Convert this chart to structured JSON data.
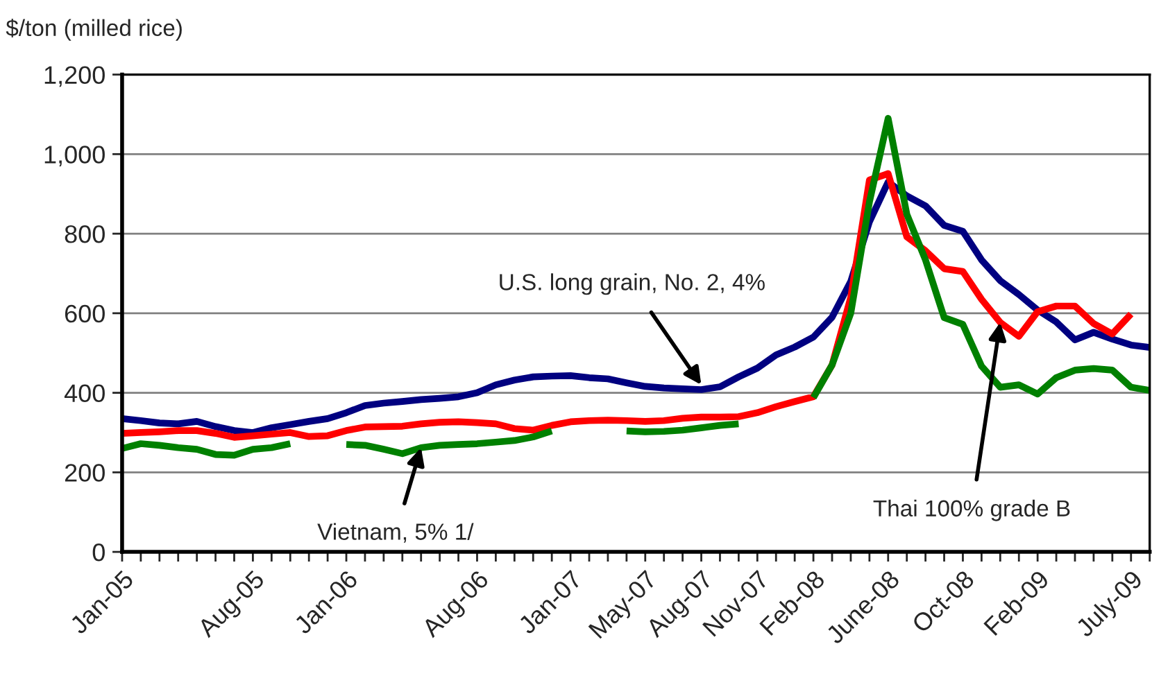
{
  "chart_data": {
    "type": "line",
    "ylabel": "$/ton (milled rice)",
    "x": [
      "2005-01",
      "2005-02",
      "2005-03",
      "2005-04",
      "2005-05",
      "2005-06",
      "2005-07",
      "2005-08",
      "2005-09",
      "2005-10",
      "2005-11",
      "2005-12",
      "2006-01",
      "2006-02",
      "2006-03",
      "2006-04",
      "2006-05",
      "2006-06",
      "2006-07",
      "2006-08",
      "2006-09",
      "2006-10",
      "2006-11",
      "2006-12",
      "2007-01",
      "2007-02",
      "2007-03",
      "2007-04",
      "2007-05",
      "2007-06",
      "2007-07",
      "2007-08",
      "2007-09",
      "2007-10",
      "2007-11",
      "2007-12",
      "2008-01",
      "2008-02",
      "2008-03",
      "2008-04",
      "2008-05",
      "2008-06",
      "2008-07",
      "2008-08",
      "2008-09",
      "2008-10",
      "2008-11",
      "2008-12",
      "2009-01",
      "2009-02",
      "2009-03",
      "2009-04",
      "2009-05",
      "2009-06",
      "2009-07",
      "2009-08"
    ],
    "series": [
      {
        "color": "#000080",
        "values": [
          335,
          330,
          324,
          322,
          328,
          315,
          305,
          300,
          312,
          320,
          328,
          335,
          350,
          368,
          374,
          378,
          383,
          386,
          390,
          400,
          420,
          432,
          440,
          442,
          443,
          438,
          435,
          425,
          416,
          412,
          410,
          408,
          415,
          440,
          462,
          495,
          515,
          540,
          590,
          680,
          830,
          930,
          895,
          870,
          821,
          806,
          734,
          682,
          647,
          608,
          578,
          533,
          552,
          535,
          520,
          514
        ]
      },
      {
        "color": "#ff0000",
        "values": [
          298,
          300,
          302,
          305,
          305,
          298,
          288,
          292,
          296,
          300,
          290,
          292,
          305,
          314,
          315,
          316,
          322,
          326,
          327,
          325,
          322,
          310,
          306,
          318,
          327,
          330,
          331,
          330,
          328,
          330,
          336,
          339,
          339,
          340,
          350,
          365,
          378,
          390,
          470,
          640,
          935,
          951,
          792,
          757,
          712,
          705,
          635,
          577,
          542,
          604,
          618,
          618,
          574,
          548,
          598,
          null
        ]
      },
      {
        "color": "#008000",
        "values": [
          260,
          272,
          268,
          262,
          258,
          245,
          243,
          258,
          262,
          272,
          null,
          null,
          270,
          268,
          258,
          247,
          262,
          268,
          270,
          272,
          276,
          280,
          289,
          304,
          null,
          null,
          null,
          304,
          302,
          303,
          306,
          312,
          318,
          322,
          null,
          null,
          null,
          388,
          470,
          600,
          880,
          1090,
          849,
          734,
          589,
          572,
          467,
          414,
          420,
          397,
          438,
          457,
          461,
          457,
          414,
          406
        ]
      }
    ],
    "annotations": [
      {
        "text": "U.S. long grain, No. 2, 4%",
        "x": "2007-08",
        "y": 420
      },
      {
        "text": "Vietnam, 5% 1/",
        "x": "2006-05",
        "y": 262
      },
      {
        "text": "Thai 100% grade B",
        "x": "2008-12",
        "y": 577
      }
    ],
    "xlim": [
      "2005-01",
      "2009-08"
    ],
    "xticks": [
      {
        "value": "2005-01",
        "label": "Jan-05"
      },
      {
        "value": "2005-02",
        "label": null
      },
      {
        "value": "2005-03",
        "label": null
      },
      {
        "value": "2005-04",
        "label": null
      },
      {
        "value": "2005-05",
        "label": null
      },
      {
        "value": "2005-06",
        "label": null
      },
      {
        "value": "2005-07",
        "label": null
      },
      {
        "value": "2005-08",
        "label": "Aug-05"
      },
      {
        "value": "2005-09",
        "label": null
      },
      {
        "value": "2005-10",
        "label": null
      },
      {
        "value": "2005-11",
        "label": null
      },
      {
        "value": "2005-12",
        "label": null
      },
      {
        "value": "2006-01",
        "label": "Jan-06"
      },
      {
        "value": "2006-02",
        "label": null
      },
      {
        "value": "2006-03",
        "label": null
      },
      {
        "value": "2006-04",
        "label": null
      },
      {
        "value": "2006-05",
        "label": null
      },
      {
        "value": "2006-06",
        "label": null
      },
      {
        "value": "2006-07",
        "label": null
      },
      {
        "value": "2006-08",
        "label": "Aug-06"
      },
      {
        "value": "2006-09",
        "label": null
      },
      {
        "value": "2006-10",
        "label": null
      },
      {
        "value": "2006-11",
        "label": null
      },
      {
        "value": "2006-12",
        "label": null
      },
      {
        "value": "2007-01",
        "label": "Jan-07"
      },
      {
        "value": "2007-02",
        "label": null
      },
      {
        "value": "2007-03",
        "label": null
      },
      {
        "value": "2007-04",
        "label": null
      },
      {
        "value": "2007-05",
        "label": "May-07"
      },
      {
        "value": "2007-06",
        "label": null
      },
      {
        "value": "2007-07",
        "label": null
      },
      {
        "value": "2007-08",
        "label": "Aug-07"
      },
      {
        "value": "2007-09",
        "label": null
      },
      {
        "value": "2007-10",
        "label": null
      },
      {
        "value": "2007-11",
        "label": "Nov-07"
      },
      {
        "value": "2007-12",
        "label": null
      },
      {
        "value": "2008-01",
        "label": null
      },
      {
        "value": "2008-02",
        "label": "Feb-08"
      },
      {
        "value": "2008-03",
        "label": null
      },
      {
        "value": "2008-04",
        "label": null
      },
      {
        "value": "2008-05",
        "label": null
      },
      {
        "value": "2008-06",
        "label": "June-08"
      },
      {
        "value": "2008-07",
        "label": null
      },
      {
        "value": "2008-08",
        "label": null
      },
      {
        "value": "2008-09",
        "label": null
      },
      {
        "value": "2008-10",
        "label": "Oct-08"
      },
      {
        "value": "2008-11",
        "label": null
      },
      {
        "value": "2008-12",
        "label": null
      },
      {
        "value": "2009-01",
        "label": null
      },
      {
        "value": "2009-02",
        "label": "Feb-09"
      },
      {
        "value": "2009-03",
        "label": null
      },
      {
        "value": "2009-04",
        "label": null
      },
      {
        "value": "2009-05",
        "label": null
      },
      {
        "value": "2009-06",
        "label": null
      },
      {
        "value": "2009-07",
        "label": "July-09"
      },
      {
        "value": "2009-08",
        "label": null
      }
    ],
    "ylim": [
      0,
      1200
    ],
    "yticks": [
      0,
      200,
      400,
      600,
      800,
      {
        "value": 1000,
        "label": "1,000"
      },
      {
        "value": 1200,
        "label": "1,200"
      }
    ],
    "grid": "y",
    "legend": false,
    "marker": "none",
    "line_style": "solid"
  }
}
